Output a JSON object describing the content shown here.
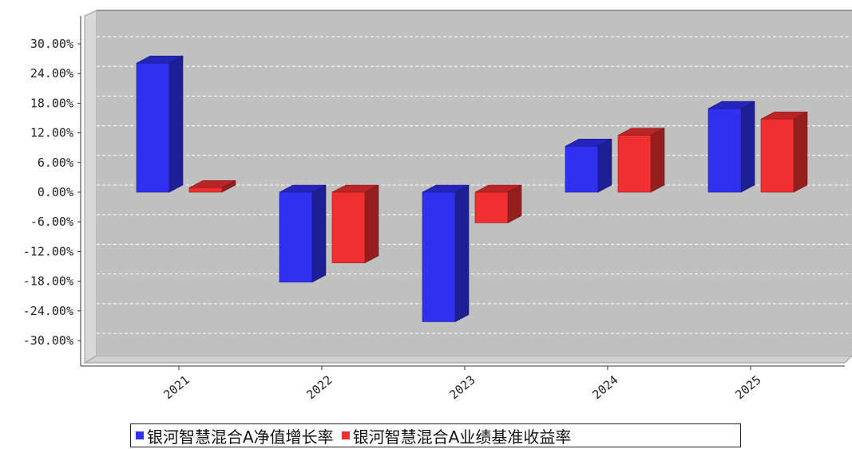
{
  "chart_data": {
    "type": "bar",
    "categories": [
      "2021",
      "2022",
      "2023",
      "2024",
      "2025"
    ],
    "series": [
      {
        "name": "银河智慧混合A净值增长率",
        "color": "#3030f0",
        "values": [
          26.1,
          -18.2,
          -26.2,
          9.3,
          16.9
        ]
      },
      {
        "name": "银河智慧混合A业绩基准收益率",
        "color": "#f03030",
        "values": [
          0.9,
          -14.3,
          -6.2,
          11.5,
          14.8
        ]
      }
    ],
    "yticks": [
      "30.00%",
      "24.00%",
      "18.00%",
      "12.00%",
      "6.00%",
      "0.00%",
      "-6.00%",
      "-12.00%",
      "-18.00%",
      "-24.00%",
      "-30.00%"
    ],
    "ytick_values": [
      30,
      24,
      18,
      12,
      6,
      0,
      -6,
      -12,
      -18,
      -24,
      -30
    ],
    "ylim": [
      -34,
      36
    ],
    "grid": true,
    "legend_position": "bottom",
    "style": "3d"
  }
}
